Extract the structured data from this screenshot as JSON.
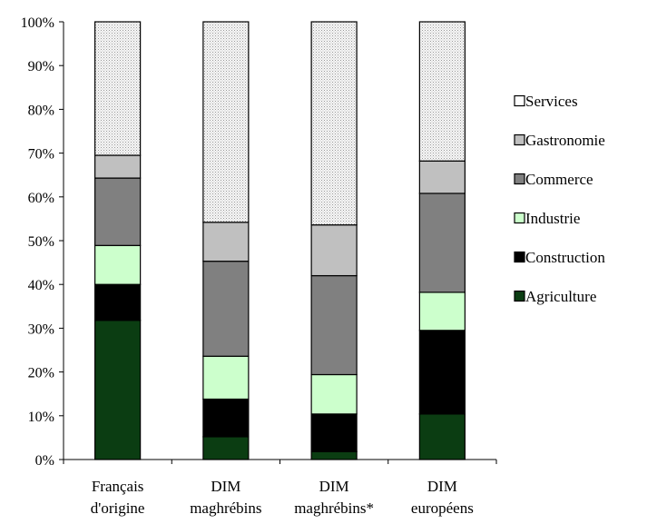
{
  "chart_data": {
    "type": "bar",
    "stacked": true,
    "percent": true,
    "categories": [
      [
        "Français",
        "d'origine"
      ],
      [
        "DIM",
        "maghrébins"
      ],
      [
        "DIM",
        "maghrébins*"
      ],
      [
        "DIM",
        "européens"
      ]
    ],
    "ylim": [
      0,
      100
    ],
    "yticks": [
      0,
      10,
      20,
      30,
      40,
      50,
      60,
      70,
      80,
      90,
      100
    ],
    "ytick_labels": [
      "0%",
      "10%",
      "20%",
      "30%",
      "40%",
      "50%",
      "60%",
      "70%",
      "80%",
      "90%",
      "100%"
    ],
    "series": [
      {
        "name": "Agriculture",
        "color": "#0b3d12",
        "values": [
          31.8,
          5.2,
          1.8,
          10.4
        ]
      },
      {
        "name": "Construction",
        "color": "#000000",
        "values": [
          8.2,
          8.6,
          8.6,
          19.1
        ]
      },
      {
        "name": "Industrie",
        "color": "#ccffcc",
        "values": [
          8.9,
          9.8,
          9.0,
          8.7
        ]
      },
      {
        "name": "Commerce",
        "color": "#808080",
        "values": [
          15.4,
          21.7,
          22.6,
          22.6
        ]
      },
      {
        "name": "Gastronomie",
        "color": "#c0c0c0",
        "values": [
          5.2,
          8.9,
          11.6,
          7.4
        ]
      },
      {
        "name": "Services",
        "color": "#f0f0f0",
        "pattern": "dotted",
        "values": [
          30.5,
          45.8,
          46.4,
          31.8
        ]
      }
    ],
    "legend_order": [
      "Services",
      "Gastronomie",
      "Commerce",
      "Industrie",
      "Construction",
      "Agriculture"
    ],
    "legend_position": "right",
    "grid": false
  }
}
